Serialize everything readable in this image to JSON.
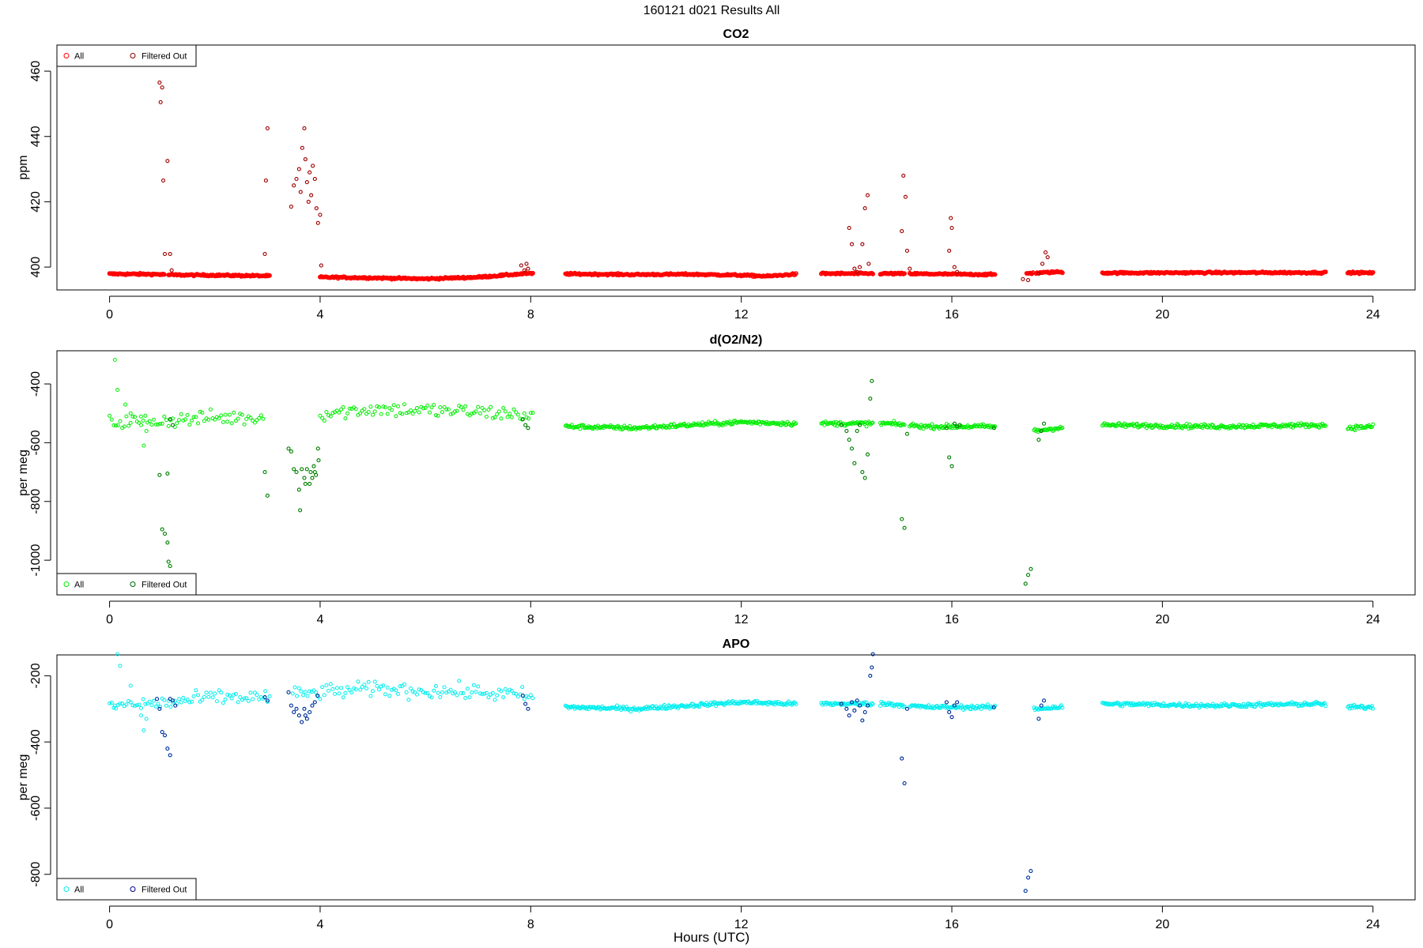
{
  "page": {
    "title": "160121   d021   Results All",
    "xlabel": "Hours (UTC)"
  },
  "colors": {
    "co2_all": "#ff0000",
    "co2_filtered": "#8b0000",
    "o2_all": "#00ee00",
    "o2_filtered": "#006400",
    "apo_all": "#00eeee",
    "apo_filtered": "#00008b"
  },
  "chart_data": [
    {
      "type": "scatter",
      "title": "CO2",
      "ylabel": "ppm",
      "xlim": [
        -1,
        24.8
      ],
      "ylim": [
        393,
        468
      ],
      "xticks": [
        0,
        4,
        8,
        12,
        16,
        20,
        24
      ],
      "xticklabels": [
        "0",
        "4",
        "8",
        "12",
        "16",
        "20",
        "24"
      ],
      "yticks": [
        400,
        420,
        440,
        460
      ],
      "yticklabels": [
        "400",
        "420",
        "440",
        "460"
      ],
      "legend": {
        "position": "top-left",
        "all_label": "All",
        "filtered_label": "Filtered Out"
      },
      "baseline": [
        [
          0,
          397.9
        ],
        [
          0.9,
          397.8
        ],
        [
          1.2,
          397.6
        ],
        [
          2,
          397.5
        ],
        [
          3,
          397.3
        ],
        [
          4,
          396.9
        ],
        [
          5,
          396.7
        ],
        [
          6,
          396.4
        ],
        [
          7,
          396.9
        ],
        [
          7.9,
          398
        ],
        [
          8.7,
          397.9
        ],
        [
          10,
          397.7
        ],
        [
          11,
          397.8
        ],
        [
          12,
          397.5
        ],
        [
          12.5,
          397.2
        ],
        [
          13,
          397.8
        ],
        [
          13.5,
          398
        ],
        [
          14.8,
          398
        ],
        [
          15.5,
          397.9
        ],
        [
          16.8,
          397.7
        ],
        [
          17.6,
          398.2
        ],
        [
          18,
          398.5
        ],
        [
          18.9,
          398.2
        ],
        [
          21,
          398.3
        ],
        [
          23,
          398.3
        ],
        [
          23.5,
          398.3
        ],
        [
          24,
          398.2
        ]
      ],
      "gaps": [
        [
          1.05,
          1.12
        ],
        [
          3.05,
          4.0
        ],
        [
          8.05,
          8.65
        ],
        [
          13.05,
          13.5
        ],
        [
          14.5,
          14.62
        ],
        [
          15.1,
          15.18
        ],
        [
          16.82,
          17.4
        ],
        [
          17.55,
          17.58
        ],
        [
          18.1,
          18.85
        ],
        [
          23.1,
          23.5
        ]
      ],
      "noise": 0.25,
      "filtered": [
        [
          0.95,
          456.5
        ],
        [
          0.97,
          450.5
        ],
        [
          1.0,
          455
        ],
        [
          1.02,
          426.5
        ],
        [
          1.05,
          404
        ],
        [
          1.1,
          432.5
        ],
        [
          1.15,
          404
        ],
        [
          1.18,
          399
        ],
        [
          2.95,
          404
        ],
        [
          2.97,
          426.5
        ],
        [
          3.0,
          442.5
        ],
        [
          3.45,
          418.5
        ],
        [
          3.5,
          425
        ],
        [
          3.55,
          427
        ],
        [
          3.6,
          430
        ],
        [
          3.63,
          423
        ],
        [
          3.66,
          436.5
        ],
        [
          3.7,
          442.5
        ],
        [
          3.72,
          433
        ],
        [
          3.75,
          426
        ],
        [
          3.78,
          420
        ],
        [
          3.8,
          429
        ],
        [
          3.83,
          422
        ],
        [
          3.86,
          431
        ],
        [
          3.9,
          427
        ],
        [
          3.93,
          418
        ],
        [
          3.96,
          413.5
        ],
        [
          4.0,
          416
        ],
        [
          4.02,
          400.5
        ],
        [
          7.82,
          400.5
        ],
        [
          7.88,
          399
        ],
        [
          7.92,
          401
        ],
        [
          7.95,
          399.5
        ],
        [
          14.05,
          412
        ],
        [
          14.1,
          407
        ],
        [
          14.15,
          399.5
        ],
        [
          14.2,
          398.5
        ],
        [
          14.25,
          400
        ],
        [
          14.3,
          407
        ],
        [
          14.35,
          418
        ],
        [
          14.4,
          422
        ],
        [
          14.42,
          401
        ],
        [
          15.05,
          411
        ],
        [
          15.08,
          428
        ],
        [
          15.12,
          421.5
        ],
        [
          15.15,
          405
        ],
        [
          15.2,
          399.5
        ],
        [
          15.95,
          405
        ],
        [
          15.98,
          415
        ],
        [
          16.0,
          412
        ],
        [
          16.05,
          400
        ],
        [
          16.1,
          398.5
        ],
        [
          17.35,
          396.3
        ],
        [
          17.45,
          396
        ],
        [
          17.65,
          398
        ],
        [
          17.72,
          401
        ],
        [
          17.78,
          404.5
        ],
        [
          17.82,
          403
        ]
      ]
    },
    {
      "type": "scatter",
      "title": "d(O2/N2)",
      "ylabel": "per meg",
      "xlim": [
        -1,
        24.8
      ],
      "ylim": [
        -1118,
        -287
      ],
      "xticks": [
        0,
        4,
        8,
        12,
        16,
        20,
        24
      ],
      "xticklabels": [
        "0",
        "4",
        "8",
        "12",
        "16",
        "20",
        "24"
      ],
      "yticks": [
        -1000,
        -800,
        -600,
        -400
      ],
      "yticklabels": [
        "-1000",
        "-800",
        "-600",
        "-400"
      ],
      "legend": {
        "position": "bottom-left",
        "all_label": "All",
        "filtered_label": "Filtered Out"
      },
      "baseline": [
        [
          0,
          -530
        ],
        [
          0.9,
          -525
        ],
        [
          1.5,
          -520
        ],
        [
          2,
          -515
        ],
        [
          3,
          -515
        ],
        [
          4,
          -500
        ],
        [
          5,
          -485
        ],
        [
          6,
          -490
        ],
        [
          7,
          -495
        ],
        [
          7.9,
          -505
        ],
        [
          8.7,
          -545
        ],
        [
          10,
          -550
        ],
        [
          11,
          -540
        ],
        [
          12,
          -530
        ],
        [
          13,
          -535
        ],
        [
          13.5,
          -535
        ],
        [
          14.8,
          -535
        ],
        [
          15.5,
          -545
        ],
        [
          16.8,
          -545
        ],
        [
          17.6,
          -560
        ],
        [
          18,
          -550
        ],
        [
          18.9,
          -540
        ],
        [
          21,
          -545
        ],
        [
          23,
          -540
        ],
        [
          23.5,
          -550
        ],
        [
          24,
          -545
        ]
      ],
      "gaps": [
        [
          2.95,
          4.0
        ],
        [
          8.05,
          8.65
        ],
        [
          13.05,
          13.5
        ],
        [
          14.5,
          14.62
        ],
        [
          15.1,
          15.18
        ],
        [
          16.82,
          17.55
        ],
        [
          18.1,
          18.85
        ],
        [
          23.1,
          23.5
        ]
      ],
      "noise_dense": 7,
      "noise_sparse": 25,
      "all_extra": [
        [
          0.1,
          -318
        ],
        [
          0.15,
          -420
        ],
        [
          0.3,
          -470
        ],
        [
          0.4,
          -500
        ],
        [
          0.6,
          -540
        ],
        [
          0.65,
          -610
        ],
        [
          0.7,
          -560
        ]
      ],
      "filtered": [
        [
          0.95,
          -710
        ],
        [
          1.0,
          -895
        ],
        [
          1.05,
          -910
        ],
        [
          1.1,
          -705
        ],
        [
          1.12,
          -1005
        ],
        [
          1.15,
          -1020
        ],
        [
          1.1,
          -940
        ],
        [
          1.15,
          -520
        ],
        [
          1.2,
          -540
        ],
        [
          2.95,
          -700
        ],
        [
          3.0,
          -780
        ],
        [
          3.4,
          -620
        ],
        [
          3.45,
          -630
        ],
        [
          3.5,
          -690
        ],
        [
          3.55,
          -700
        ],
        [
          3.6,
          -760
        ],
        [
          3.62,
          -830
        ],
        [
          3.65,
          -690
        ],
        [
          3.7,
          -720
        ],
        [
          3.72,
          -740
        ],
        [
          3.75,
          -690
        ],
        [
          3.8,
          -740
        ],
        [
          3.82,
          -700
        ],
        [
          3.85,
          -720
        ],
        [
          3.88,
          -680
        ],
        [
          3.9,
          -700
        ],
        [
          3.92,
          -710
        ],
        [
          3.96,
          -620
        ],
        [
          3.97,
          -660
        ],
        [
          7.85,
          -520
        ],
        [
          7.9,
          -540
        ],
        [
          7.95,
          -550
        ],
        [
          13.9,
          -540
        ],
        [
          14.0,
          -560
        ],
        [
          14.05,
          -590
        ],
        [
          14.1,
          -620
        ],
        [
          14.15,
          -670
        ],
        [
          14.2,
          -560
        ],
        [
          14.25,
          -540
        ],
        [
          14.3,
          -700
        ],
        [
          14.35,
          -720
        ],
        [
          14.4,
          -640
        ],
        [
          14.45,
          -450
        ],
        [
          14.48,
          -390
        ],
        [
          15.05,
          -860
        ],
        [
          15.1,
          -890
        ],
        [
          15.15,
          -570
        ],
        [
          15.9,
          -550
        ],
        [
          15.95,
          -650
        ],
        [
          16.0,
          -680
        ],
        [
          16.05,
          -535
        ],
        [
          16.1,
          -545
        ],
        [
          16.15,
          -540
        ],
        [
          16.8,
          -550
        ],
        [
          17.4,
          -1080
        ],
        [
          17.45,
          -1050
        ],
        [
          17.5,
          -1030
        ],
        [
          17.65,
          -590
        ],
        [
          17.7,
          -560
        ],
        [
          17.75,
          -535
        ]
      ]
    },
    {
      "type": "scatter",
      "title": "APO",
      "ylabel": "per meg",
      "xlim": [
        -1,
        24.8
      ],
      "ylim": [
        -877,
        -137
      ],
      "xticks": [
        0,
        4,
        8,
        12,
        16,
        20,
        24
      ],
      "xticklabels": [
        "0",
        "4",
        "8",
        "12",
        "16",
        "20",
        "24"
      ],
      "yticks": [
        -800,
        -600,
        -400,
        -200
      ],
      "yticklabels": [
        "-800",
        "-600",
        "-400",
        "-200"
      ],
      "legend": {
        "position": "bottom-left",
        "all_label": "All",
        "filtered_label": "Filtered Out"
      },
      "baseline": [
        [
          0,
          -290
        ],
        [
          0.9,
          -285
        ],
        [
          1.5,
          -275
        ],
        [
          2,
          -265
        ],
        [
          3,
          -265
        ],
        [
          4,
          -250
        ],
        [
          5,
          -240
        ],
        [
          6,
          -245
        ],
        [
          7,
          -250
        ],
        [
          7.9,
          -260
        ],
        [
          8.7,
          -295
        ],
        [
          10,
          -300
        ],
        [
          11,
          -290
        ],
        [
          12,
          -280
        ],
        [
          13,
          -285
        ],
        [
          13.5,
          -285
        ],
        [
          14.8,
          -285
        ],
        [
          15.5,
          -295
        ],
        [
          16.8,
          -295
        ],
        [
          17.6,
          -300
        ],
        [
          18,
          -295
        ],
        [
          18.9,
          -285
        ],
        [
          21,
          -290
        ],
        [
          23,
          -285
        ],
        [
          23.5,
          -295
        ],
        [
          24,
          -295
        ]
      ],
      "gaps": [
        [
          3.05,
          3.45
        ],
        [
          4.0,
          4.0
        ],
        [
          8.05,
          8.65
        ],
        [
          13.05,
          13.5
        ],
        [
          14.5,
          14.62
        ],
        [
          15.1,
          15.18
        ],
        [
          16.82,
          17.55
        ],
        [
          18.1,
          18.85
        ],
        [
          23.1,
          23.5
        ]
      ],
      "noise_dense": 6,
      "noise_sparse": 22,
      "all_extra": [
        [
          0.1,
          -290
        ],
        [
          0.15,
          -135
        ],
        [
          0.2,
          -170
        ],
        [
          0.4,
          -230
        ],
        [
          0.6,
          -320
        ],
        [
          0.65,
          -365
        ],
        [
          0.7,
          -330
        ]
      ],
      "filtered": [
        [
          0.9,
          -270
        ],
        [
          0.95,
          -300
        ],
        [
          1.0,
          -370
        ],
        [
          1.05,
          -380
        ],
        [
          1.1,
          -420
        ],
        [
          1.15,
          -440
        ],
        [
          1.15,
          -270
        ],
        [
          1.2,
          -275
        ],
        [
          1.25,
          -290
        ],
        [
          2.95,
          -265
        ],
        [
          3.0,
          -275
        ],
        [
          3.4,
          -250
        ],
        [
          3.45,
          -290
        ],
        [
          3.5,
          -310
        ],
        [
          3.55,
          -300
        ],
        [
          3.6,
          -320
        ],
        [
          3.65,
          -340
        ],
        [
          3.7,
          -300
        ],
        [
          3.72,
          -320
        ],
        [
          3.75,
          -330
        ],
        [
          3.8,
          -310
        ],
        [
          3.85,
          -290
        ],
        [
          3.9,
          -280
        ],
        [
          3.95,
          -260
        ],
        [
          7.85,
          -260
        ],
        [
          7.9,
          -285
        ],
        [
          7.95,
          -300
        ],
        [
          13.9,
          -285
        ],
        [
          14.0,
          -300
        ],
        [
          14.05,
          -320
        ],
        [
          14.1,
          -280
        ],
        [
          14.15,
          -305
        ],
        [
          14.2,
          -275
        ],
        [
          14.25,
          -290
        ],
        [
          14.3,
          -335
        ],
        [
          14.35,
          -310
        ],
        [
          14.4,
          -290
        ],
        [
          14.45,
          -200
        ],
        [
          14.48,
          -175
        ],
        [
          14.5,
          -135
        ],
        [
          15.05,
          -450
        ],
        [
          15.1,
          -525
        ],
        [
          15.15,
          -300
        ],
        [
          15.9,
          -280
        ],
        [
          15.95,
          -310
        ],
        [
          16.0,
          -325
        ],
        [
          16.05,
          -290
        ],
        [
          16.1,
          -280
        ],
        [
          16.8,
          -295
        ],
        [
          17.4,
          -850
        ],
        [
          17.45,
          -810
        ],
        [
          17.5,
          -790
        ],
        [
          17.65,
          -330
        ],
        [
          17.7,
          -290
        ],
        [
          17.75,
          -275
        ]
      ]
    }
  ]
}
